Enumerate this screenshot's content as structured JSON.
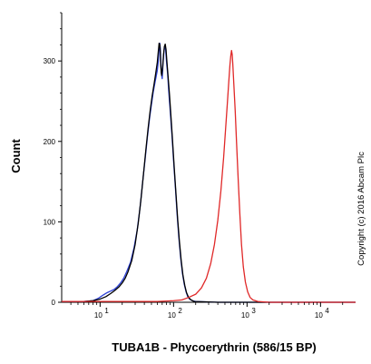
{
  "chart_data": {
    "type": "line",
    "xlabel": "TUBA1B - Phycoerythrin (586/15 BP)",
    "ylabel": "Count",
    "annotation": "Copyright (c) 2016 Abcam Plc",
    "x_scale": "log",
    "xlim": [
      3,
      30000
    ],
    "ylim": [
      0,
      360
    ],
    "x_ticks": [
      {
        "base": "10",
        "exp": "1",
        "value": 10
      },
      {
        "base": "10",
        "exp": "2",
        "value": 100
      },
      {
        "base": "10",
        "exp": "3",
        "value": 1000
      },
      {
        "base": "10",
        "exp": "4",
        "value": 10000
      }
    ],
    "y_ticks": [
      0,
      100,
      200,
      300
    ],
    "grid": false,
    "series": [
      {
        "color": "#2b3fd6",
        "width": 1.3,
        "points": [
          [
            3,
            1
          ],
          [
            6,
            1
          ],
          [
            8,
            2
          ],
          [
            9.5,
            5
          ],
          [
            11,
            9
          ],
          [
            12.5,
            12
          ],
          [
            14,
            14
          ],
          [
            15.5,
            16
          ],
          [
            17,
            19
          ],
          [
            19,
            24
          ],
          [
            21,
            30
          ],
          [
            23,
            38
          ],
          [
            26,
            50
          ],
          [
            29,
            68
          ],
          [
            32,
            90
          ],
          [
            35,
            118
          ],
          [
            38,
            150
          ],
          [
            41,
            178
          ],
          [
            44,
            205
          ],
          [
            47,
            228
          ],
          [
            50,
            246
          ],
          [
            53,
            262
          ],
          [
            56,
            274
          ],
          [
            58,
            281
          ],
          [
            60,
            288
          ],
          [
            62,
            300
          ],
          [
            63,
            310
          ],
          [
            64,
            318
          ],
          [
            65,
            322
          ],
          [
            66,
            316
          ],
          [
            67,
            302
          ],
          [
            68,
            285
          ],
          [
            70,
            278
          ],
          [
            72,
            298
          ],
          [
            74,
            312
          ],
          [
            76,
            319
          ],
          [
            78,
            314
          ],
          [
            80,
            300
          ],
          [
            83,
            284
          ],
          [
            86,
            262
          ],
          [
            90,
            238
          ],
          [
            95,
            208
          ],
          [
            100,
            176
          ],
          [
            106,
            142
          ],
          [
            112,
            108
          ],
          [
            118,
            80
          ],
          [
            125,
            55
          ],
          [
            132,
            36
          ],
          [
            140,
            22
          ],
          [
            148,
            13
          ],
          [
            156,
            7
          ],
          [
            165,
            4
          ],
          [
            180,
            2
          ],
          [
            200,
            1
          ],
          [
            400,
            0
          ],
          [
            30000,
            0
          ]
        ]
      },
      {
        "color": "#000000",
        "width": 1.3,
        "points": [
          [
            3,
            1
          ],
          [
            6,
            1
          ],
          [
            8,
            2
          ],
          [
            10,
            4
          ],
          [
            12,
            7
          ],
          [
            14,
            11
          ],
          [
            16,
            15
          ],
          [
            18,
            19
          ],
          [
            20,
            24
          ],
          [
            22,
            30
          ],
          [
            24,
            38
          ],
          [
            27,
            52
          ],
          [
            30,
            72
          ],
          [
            33,
            98
          ],
          [
            36,
            128
          ],
          [
            39,
            160
          ],
          [
            42,
            190
          ],
          [
            45,
            216
          ],
          [
            48,
            238
          ],
          [
            51,
            256
          ],
          [
            54,
            270
          ],
          [
            57,
            284
          ],
          [
            60,
            298
          ],
          [
            62,
            312
          ],
          [
            63.5,
            322
          ],
          [
            65,
            320
          ],
          [
            66,
            310
          ],
          [
            67,
            294
          ],
          [
            68,
            286
          ],
          [
            69,
            282
          ],
          [
            71,
            292
          ],
          [
            73,
            308
          ],
          [
            75,
            318
          ],
          [
            77,
            321
          ],
          [
            79,
            314
          ],
          [
            81,
            300
          ],
          [
            84,
            282
          ],
          [
            88,
            258
          ],
          [
            92,
            232
          ],
          [
            97,
            200
          ],
          [
            102,
            168
          ],
          [
            108,
            134
          ],
          [
            114,
            102
          ],
          [
            120,
            76
          ],
          [
            127,
            52
          ],
          [
            134,
            34
          ],
          [
            142,
            21
          ],
          [
            150,
            12
          ],
          [
            160,
            6
          ],
          [
            172,
            3
          ],
          [
            190,
            1
          ],
          [
            400,
            0
          ],
          [
            30000,
            0
          ]
        ]
      },
      {
        "color": "#e02828",
        "width": 1.3,
        "points": [
          [
            3,
            1
          ],
          [
            30,
            1
          ],
          [
            60,
            1
          ],
          [
            100,
            2
          ],
          [
            130,
            3
          ],
          [
            160,
            6
          ],
          [
            200,
            10
          ],
          [
            240,
            18
          ],
          [
            280,
            30
          ],
          [
            320,
            48
          ],
          [
            360,
            72
          ],
          [
            400,
            102
          ],
          [
            440,
            138
          ],
          [
            480,
            180
          ],
          [
            510,
            215
          ],
          [
            540,
            248
          ],
          [
            565,
            275
          ],
          [
            585,
            295
          ],
          [
            600,
            306
          ],
          [
            615,
            313
          ],
          [
            628,
            308
          ],
          [
            640,
            296
          ],
          [
            660,
            272
          ],
          [
            690,
            238
          ],
          [
            720,
            198
          ],
          [
            760,
            150
          ],
          [
            800,
            108
          ],
          [
            840,
            72
          ],
          [
            890,
            44
          ],
          [
            950,
            25
          ],
          [
            1020,
            13
          ],
          [
            1100,
            6
          ],
          [
            1200,
            3
          ],
          [
            1400,
            1
          ],
          [
            2000,
            0
          ],
          [
            30000,
            0
          ]
        ]
      }
    ]
  }
}
